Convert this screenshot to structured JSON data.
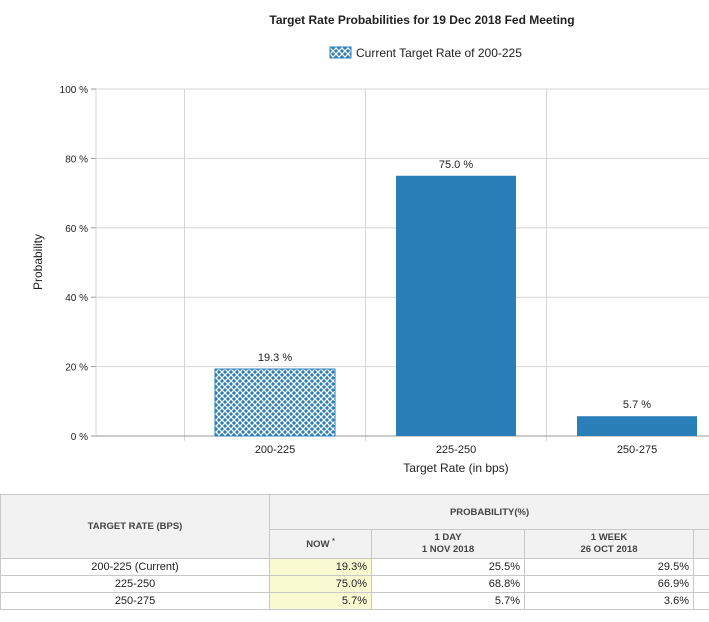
{
  "chart_data": {
    "type": "bar",
    "title": "Target Rate Probabilities for 19 Dec 2018 Fed Meeting",
    "legend": {
      "label": "Current Target Rate of 200-225",
      "placement": "top-center"
    },
    "xlabel": "Target Rate (in bps)",
    "ylabel": "Probability",
    "ylim": [
      0,
      100
    ],
    "yticks": [
      "0 %",
      "20 %",
      "40 %",
      "60 %",
      "80 %",
      "100 %"
    ],
    "categories": [
      "200-225",
      "225-250",
      "250-275"
    ],
    "values": [
      19.3,
      75.0,
      5.7
    ],
    "data_labels": [
      "19.3 %",
      "75.0 %",
      "5.7 %"
    ],
    "current_index": 0,
    "grid": true,
    "colors": {
      "bar": "#2a7fb8",
      "current_bar": "#2a7fb8",
      "grid": "#d6d6d6"
    }
  },
  "table": {
    "target_header": "TARGET RATE (BPS)",
    "prob_header": "PROBABILITY(%)",
    "now_header": "NOW",
    "now_marker": "*",
    "day_header": [
      "1 DAY",
      "1 NOV 2018"
    ],
    "week_header": [
      "1 WEEK",
      "26 OCT 2018"
    ],
    "rows": [
      {
        "rate": "200-225 (Current)",
        "now": "19.3%",
        "day": "25.5%",
        "week": "29.5%"
      },
      {
        "rate": "225-250",
        "now": "75.0%",
        "day": "68.8%",
        "week": "66.9%"
      },
      {
        "rate": "250-275",
        "now": "5.7%",
        "day": "5.7%",
        "week": "3.6%"
      }
    ]
  }
}
